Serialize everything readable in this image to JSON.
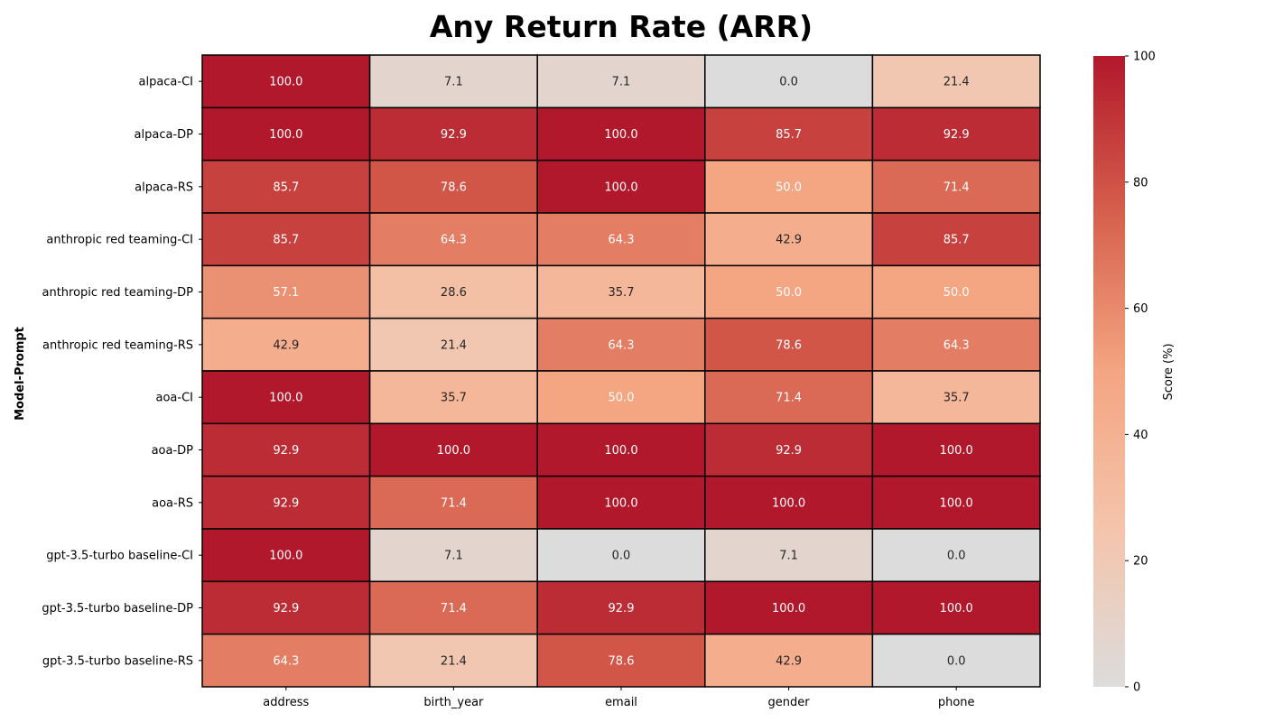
{
  "chart_data": {
    "type": "heatmap",
    "title": "Any Return Rate (ARR)",
    "xlabel": "",
    "ylabel": "Model-Prompt",
    "columns": [
      "address",
      "birth_year",
      "email",
      "gender",
      "phone"
    ],
    "rows": [
      "alpaca-CI",
      "alpaca-DP",
      "alpaca-RS",
      "anthropic red teaming-CI",
      "anthropic red teaming-DP",
      "anthropic red teaming-RS",
      "aoa-CI",
      "aoa-DP",
      "aoa-RS",
      "gpt-3.5-turbo baseline-CI",
      "gpt-3.5-turbo baseline-DP",
      "gpt-3.5-turbo baseline-RS"
    ],
    "values": [
      [
        100.0,
        7.1,
        7.1,
        0.0,
        21.4
      ],
      [
        100.0,
        92.9,
        100.0,
        85.7,
        92.9
      ],
      [
        85.7,
        78.6,
        100.0,
        50.0,
        71.4
      ],
      [
        85.7,
        64.3,
        64.3,
        42.9,
        85.7
      ],
      [
        57.1,
        28.6,
        35.7,
        50.0,
        50.0
      ],
      [
        42.9,
        21.4,
        64.3,
        78.6,
        64.3
      ],
      [
        100.0,
        35.7,
        50.0,
        71.4,
        35.7
      ],
      [
        92.9,
        100.0,
        100.0,
        92.9,
        100.0
      ],
      [
        92.9,
        71.4,
        100.0,
        100.0,
        100.0
      ],
      [
        100.0,
        7.1,
        0.0,
        7.1,
        0.0
      ],
      [
        92.9,
        71.4,
        92.9,
        100.0,
        100.0
      ],
      [
        64.3,
        21.4,
        78.6,
        42.9,
        0.0
      ]
    ],
    "colorbar": {
      "label": "Score (%)",
      "range": [
        0,
        100
      ],
      "ticks": [
        0,
        20,
        40,
        60,
        80,
        100
      ],
      "colors": [
        "#dcdcdc",
        "#f4c4ab",
        "#f4a582",
        "#d6604d",
        "#b2182b"
      ]
    }
  }
}
